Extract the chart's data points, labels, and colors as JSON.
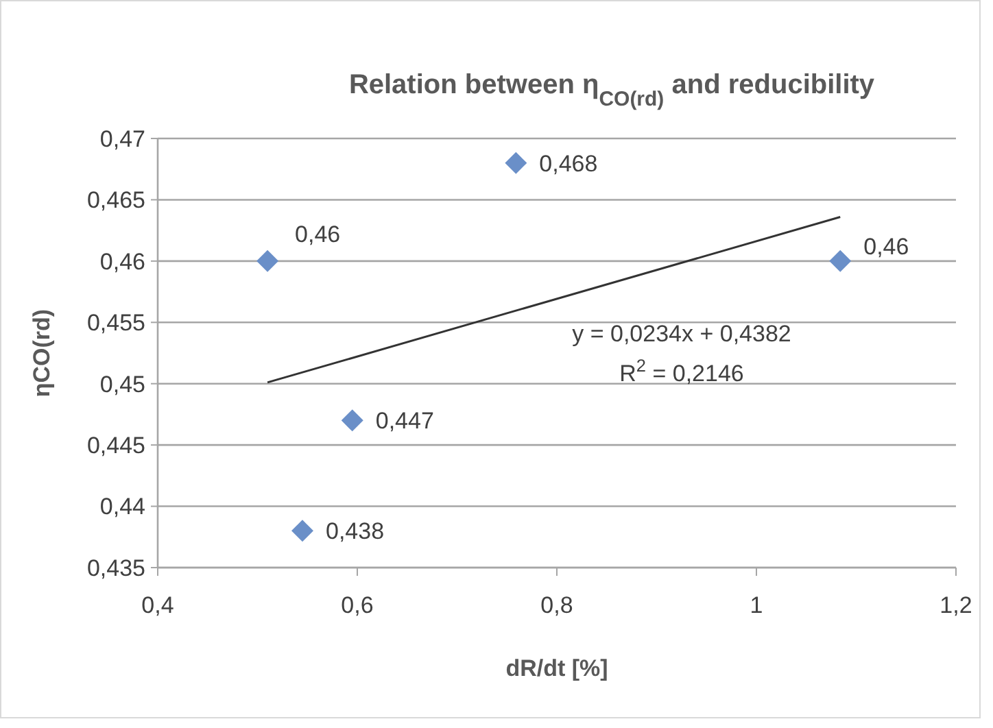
{
  "chart_data": {
    "type": "scatter",
    "title": "Relation between  η$_{CO(rd)}$ and reducibility",
    "xlabel": "dR/dt [%]",
    "ylabel": "ηCO(rd)",
    "series": [
      {
        "color": "#6a8fc8",
        "marker": "diamond",
        "x": [
          0.51,
          0.545,
          0.595,
          0.759,
          1.084
        ],
        "values": [
          0.46,
          0.438,
          0.447,
          0.468,
          0.46
        ],
        "value_labels": [
          "0,46",
          "0,438",
          "0,447",
          "0,468",
          "0,46"
        ]
      },
      {
        "type": "line",
        "color": "#333333",
        "marker": "none",
        "line_style": "solid",
        "x": [
          0.51,
          1.084
        ],
        "values": [
          0.4501,
          0.4636
        ]
      }
    ],
    "xlim": [
      0.4,
      1.2
    ],
    "xticks": [
      {
        "value": 0.4,
        "label": "0,4"
      },
      {
        "value": 0.6,
        "label": "0,6"
      },
      {
        "value": 0.8,
        "label": "0,8"
      },
      {
        "value": 1,
        "label": "1"
      },
      {
        "value": 1.2,
        "label": "1,2"
      }
    ],
    "ylim": [
      0.435,
      0.47
    ],
    "yticks": [
      {
        "value": 0.435,
        "label": "0,435"
      },
      {
        "value": 0.44,
        "label": "0,44"
      },
      {
        "value": 0.445,
        "label": "0,445"
      },
      {
        "value": 0.45,
        "label": "0,45"
      },
      {
        "value": 0.455,
        "label": "0,455"
      },
      {
        "value": 0.46,
        "label": "0,46"
      },
      {
        "value": 0.465,
        "label": "0,465"
      },
      {
        "value": 0.47,
        "label": "0,47"
      }
    ],
    "grid": "y",
    "annotations": [
      "y = 0,0234x + 0,4382",
      "R$^{2}$ = 0,2146"
    ]
  }
}
